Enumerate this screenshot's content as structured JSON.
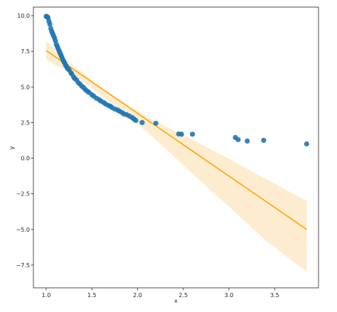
{
  "chart_data": {
    "type": "scatter",
    "title": "",
    "xlabel": "x",
    "ylabel": "y",
    "xlim": [
      0.86,
      3.98
    ],
    "ylim": [
      -9.1,
      10.6
    ],
    "x_ticks": [
      {
        "value": 1.0,
        "label": "1.0"
      },
      {
        "value": 1.5,
        "label": "1.5"
      },
      {
        "value": 2.0,
        "label": "2.0"
      },
      {
        "value": 2.5,
        "label": "2.5"
      },
      {
        "value": 3.0,
        "label": "3.0"
      },
      {
        "value": 3.5,
        "label": "3.5"
      }
    ],
    "y_ticks": [
      {
        "value": -7.5,
        "label": "−7.5"
      },
      {
        "value": -5.0,
        "label": "−5.0"
      },
      {
        "value": -2.5,
        "label": "−2.5"
      },
      {
        "value": 0.0,
        "label": "0.0"
      },
      {
        "value": 2.5,
        "label": "2.5"
      },
      {
        "value": 5.0,
        "label": "5.0"
      },
      {
        "value": 7.5,
        "label": "7.5"
      },
      {
        "value": 10.0,
        "label": "10.0"
      }
    ],
    "grid": false,
    "legend": "none",
    "scatter_color": "#1f77b4",
    "line_color": "#ffa500",
    "band_color": "#fde9c7",
    "points": [
      {
        "x": 1.0,
        "y": 9.95
      },
      {
        "x": 1.01,
        "y": 9.93
      },
      {
        "x": 1.02,
        "y": 9.85
      },
      {
        "x": 1.03,
        "y": 9.6
      },
      {
        "x": 1.04,
        "y": 9.4
      },
      {
        "x": 1.05,
        "y": 9.1
      },
      {
        "x": 1.06,
        "y": 8.9
      },
      {
        "x": 1.07,
        "y": 8.75
      },
      {
        "x": 1.08,
        "y": 8.6
      },
      {
        "x": 1.09,
        "y": 8.45
      },
      {
        "x": 1.1,
        "y": 8.25
      },
      {
        "x": 1.11,
        "y": 8.0
      },
      {
        "x": 1.12,
        "y": 7.85
      },
      {
        "x": 1.13,
        "y": 7.7
      },
      {
        "x": 1.14,
        "y": 7.55
      },
      {
        "x": 1.15,
        "y": 7.4
      },
      {
        "x": 1.16,
        "y": 7.25
      },
      {
        "x": 1.17,
        "y": 7.1
      },
      {
        "x": 1.18,
        "y": 6.95
      },
      {
        "x": 1.19,
        "y": 6.8
      },
      {
        "x": 1.2,
        "y": 6.7
      },
      {
        "x": 1.21,
        "y": 6.55
      },
      {
        "x": 1.22,
        "y": 6.45
      },
      {
        "x": 1.23,
        "y": 6.35
      },
      {
        "x": 1.24,
        "y": 6.25
      },
      {
        "x": 1.25,
        "y": 6.2
      },
      {
        "x": 1.27,
        "y": 6.0
      },
      {
        "x": 1.28,
        "y": 5.9
      },
      {
        "x": 1.3,
        "y": 5.7
      },
      {
        "x": 1.31,
        "y": 5.6
      },
      {
        "x": 1.33,
        "y": 5.5
      },
      {
        "x": 1.35,
        "y": 5.3
      },
      {
        "x": 1.37,
        "y": 5.2
      },
      {
        "x": 1.39,
        "y": 5.05
      },
      {
        "x": 1.41,
        "y": 4.95
      },
      {
        "x": 1.43,
        "y": 4.8
      },
      {
        "x": 1.45,
        "y": 4.7
      },
      {
        "x": 1.47,
        "y": 4.6
      },
      {
        "x": 1.5,
        "y": 4.45
      },
      {
        "x": 1.52,
        "y": 4.35
      },
      {
        "x": 1.55,
        "y": 4.2
      },
      {
        "x": 1.58,
        "y": 4.1
      },
      {
        "x": 1.6,
        "y": 4.0
      },
      {
        "x": 1.63,
        "y": 3.9
      },
      {
        "x": 1.65,
        "y": 3.8
      },
      {
        "x": 1.68,
        "y": 3.7
      },
      {
        "x": 1.7,
        "y": 3.65
      },
      {
        "x": 1.72,
        "y": 3.55
      },
      {
        "x": 1.75,
        "y": 3.45
      },
      {
        "x": 1.78,
        "y": 3.38
      },
      {
        "x": 1.8,
        "y": 3.3
      },
      {
        "x": 1.83,
        "y": 3.2
      },
      {
        "x": 1.85,
        "y": 3.1
      },
      {
        "x": 1.88,
        "y": 3.05
      },
      {
        "x": 1.91,
        "y": 2.95
      },
      {
        "x": 1.94,
        "y": 2.85
      },
      {
        "x": 1.96,
        "y": 2.75
      },
      {
        "x": 1.98,
        "y": 2.65
      },
      {
        "x": 2.05,
        "y": 2.5
      },
      {
        "x": 2.2,
        "y": 2.45
      },
      {
        "x": 2.45,
        "y": 1.7
      },
      {
        "x": 2.48,
        "y": 1.68
      },
      {
        "x": 2.6,
        "y": 1.68
      },
      {
        "x": 3.07,
        "y": 1.45
      },
      {
        "x": 3.1,
        "y": 1.3
      },
      {
        "x": 3.2,
        "y": 1.2
      },
      {
        "x": 3.38,
        "y": 1.25
      },
      {
        "x": 3.85,
        "y": 1.0
      }
    ],
    "fit_line": [
      {
        "x": 1.0,
        "y": 7.55
      },
      {
        "x": 3.85,
        "y": -5.0
      }
    ],
    "ci_band": [
      {
        "x": 1.0,
        "lo": 6.9,
        "hi": 8.2
      },
      {
        "x": 1.3,
        "lo": 5.85,
        "hi": 6.5
      },
      {
        "x": 1.6,
        "lo": 4.4,
        "hi": 4.95
      },
      {
        "x": 1.9,
        "lo": 2.95,
        "hi": 3.7
      },
      {
        "x": 2.2,
        "lo": 1.3,
        "hi": 2.55
      },
      {
        "x": 2.6,
        "lo": -1.1,
        "hi": 1.3
      },
      {
        "x": 3.0,
        "lo": -3.4,
        "hi": -0.05
      },
      {
        "x": 3.4,
        "lo": -5.75,
        "hi": -1.45
      },
      {
        "x": 3.85,
        "lo": -8.0,
        "hi": -3.0
      }
    ]
  }
}
